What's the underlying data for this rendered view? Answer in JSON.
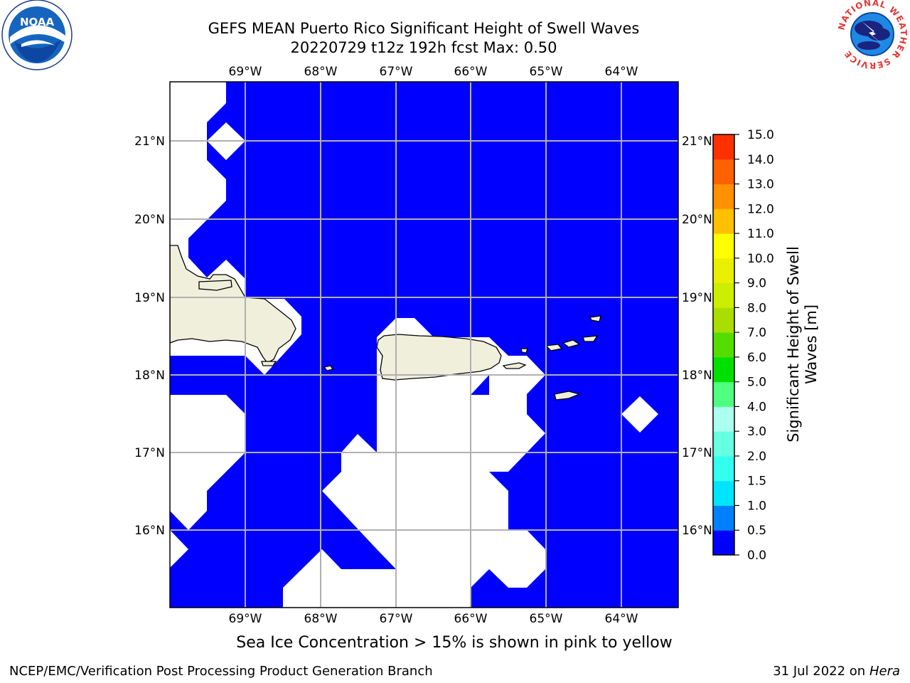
{
  "title": {
    "line1": "GEFS MEAN Puerto Rico Significant Height of Swell Waves",
    "line2": "20220729 t12z 192h fcst   Max: 0.50"
  },
  "map": {
    "lon_labels": [
      "69°W",
      "68°W",
      "67°W",
      "66°W",
      "65°W",
      "64°W"
    ],
    "lat_labels": [
      "21°N",
      "20°N",
      "19°N",
      "18°N",
      "17°N",
      "16°N"
    ],
    "ocean_color": "#0000ff",
    "land_color": "#efefdc",
    "grid_color": "#b0b0b0"
  },
  "colorbar": {
    "label_line1": "Significant Height of Swell",
    "label_line2": "Waves [m]",
    "ticks": [
      "0.0",
      "0.5",
      "1.0",
      "1.5",
      "2.0",
      "3.0",
      "4.0",
      "5.0",
      "6.0",
      "7.0",
      "8.0",
      "9.0",
      "10.0",
      "11.0",
      "12.0",
      "13.0",
      "14.0",
      "15.0"
    ],
    "colors": [
      "#0000ff",
      "#0080ff",
      "#00e5ff",
      "#33ffee",
      "#66ffe0",
      "#aaffee",
      "#50ff80",
      "#00e000",
      "#55dd00",
      "#aadd00",
      "#ccee00",
      "#e8f000",
      "#ffff00",
      "#ffc000",
      "#ff9000",
      "#ff6000",
      "#ff3000",
      "#ff0000"
    ]
  },
  "note": "Sea Ice Concentration > 15% is shown in pink to yellow",
  "footer": {
    "left": "NCEP/EMC/Verification Post Processing Product Generation Branch",
    "right_date": "31 Jul 2022 on ",
    "right_machine": "Hera"
  },
  "logos": {
    "noaa": "NOAA",
    "nws_ring": "NATIONAL WEATHER SERVICE"
  }
}
